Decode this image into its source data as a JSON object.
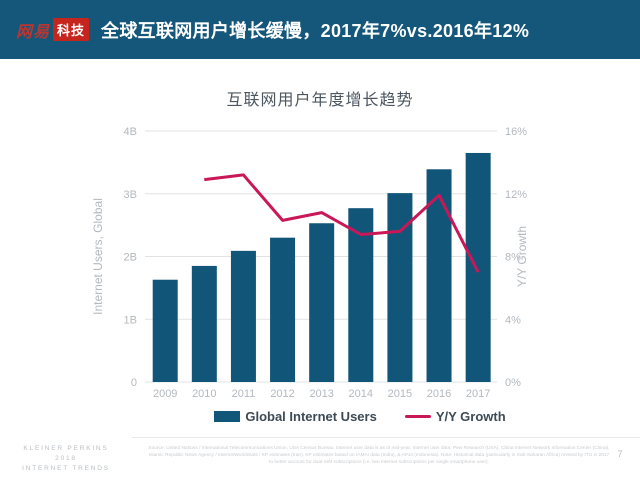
{
  "header": {
    "logo_brand": "网易",
    "logo_sub": "科技",
    "title": "全球互联网用户增长缓慢，2017年7%vs.2016年12%"
  },
  "chart_data": {
    "type": "bar",
    "title": "互联网用户年度增长趋势",
    "categories": [
      "2009",
      "2010",
      "2011",
      "2012",
      "2013",
      "2014",
      "2015",
      "2016",
      "2017"
    ],
    "series": [
      {
        "name": "Global Internet Users",
        "type": "bar",
        "axis": "left",
        "unit": "billions",
        "values": [
          1.63,
          1.85,
          2.09,
          2.3,
          2.53,
          2.77,
          3.01,
          3.39,
          3.65
        ]
      },
      {
        "name": "Y/Y Growth",
        "type": "line",
        "axis": "right",
        "unit": "percent",
        "values": [
          null,
          12.9,
          13.2,
          10.3,
          10.8,
          9.4,
          9.6,
          11.9,
          7.0
        ]
      }
    ],
    "left_axis": {
      "label": "Internet Users, Global",
      "range": [
        0,
        4
      ],
      "ticks": [
        "0",
        "1B",
        "2B",
        "3B",
        "4B"
      ]
    },
    "right_axis": {
      "label": "Y/Y Growth",
      "range": [
        0,
        16
      ],
      "ticks": [
        "0%",
        "4%",
        "8%",
        "12%",
        "16%"
      ]
    },
    "grid": true,
    "legend_position": "bottom"
  },
  "footer": {
    "kp_lines": [
      "KLEINER PERKINS",
      "2018",
      "INTERNET TRENDS"
    ],
    "source": "Source: United Nations / International Telecommunications Union, USA Census Bureau. Internet user data is as of mid-year. Internet user data: Pew Research (USA), China Internet Network Information Center (China), Islamic Republic News Agency / InternetWorldStats / KP estimates (Iran), KP estimates based on IAMAI data (India), & APJII (Indonesia).  Note: Historical data (particularly in Sub-Saharan Africa) revised by ITU in 2017 to better account for dual-SIM subscriptions (i.e. two Internet subscriptions per single smartphone user).",
    "page_number": "7"
  },
  "colors": {
    "header_bg": "#15577b",
    "bar": "#115679",
    "line": "#c91758",
    "gridline": "#e0e3e6",
    "axis_text": "#b3b9bf",
    "legend_text": "#3d4a54",
    "logo_red": "#c5251d"
  }
}
